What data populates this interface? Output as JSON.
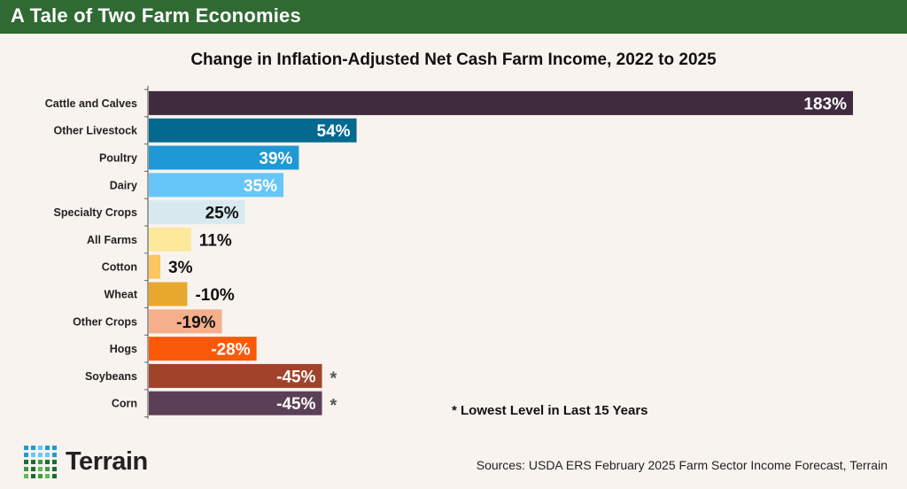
{
  "header": {
    "title": "A Tale of Two Farm Economies"
  },
  "chart_data": {
    "type": "bar",
    "orientation": "horizontal",
    "title": "Change in Inflation-Adjusted Net Cash Farm Income, 2022 to 2025",
    "xlabel": "",
    "ylabel": "",
    "bar_length_encodes": "absolute value",
    "xlim": [
      0,
      183
    ],
    "grid": false,
    "categories": [
      "Cattle and Calves",
      "Other Livestock",
      "Poultry",
      "Dairy",
      "Specialty Crops",
      "All Farms",
      "Cotton",
      "Wheat",
      "Other Crops",
      "Hogs",
      "Soybeans",
      "Corn"
    ],
    "values": [
      183,
      54,
      39,
      35,
      25,
      11,
      3,
      -10,
      -19,
      -28,
      -45,
      -45
    ],
    "data_labels": [
      "183%",
      "54%",
      "39%",
      "35%",
      "25%",
      "11%",
      "3%",
      "-10%",
      "-19%",
      "-28%",
      "-45%",
      "-45%"
    ],
    "colors": [
      "#3f2a3e",
      "#04698f",
      "#1e99d5",
      "#66c6fa",
      "#d8eaf0",
      "#fde89b",
      "#fcc660",
      "#e8a82e",
      "#f6af8b",
      "#fa5a08",
      "#a1432a",
      "#5b3f56"
    ],
    "label_colors": [
      "#ffffff",
      "#ffffff",
      "#ffffff",
      "#ffffff",
      "#111111",
      "#111111",
      "#111111",
      "#111111",
      "#111111",
      "#ffffff",
      "#ffffff",
      "#ffffff"
    ],
    "markers": [
      "",
      "",
      "",
      "",
      "",
      "",
      "",
      "",
      "",
      "",
      "*",
      "*"
    ],
    "footnote": "* Lowest Level in Last 15 Years"
  },
  "logo": {
    "text": "Terrain"
  },
  "source": "Sources: USDA ERS February 2025 Farm Sector Income Forecast, Terrain"
}
